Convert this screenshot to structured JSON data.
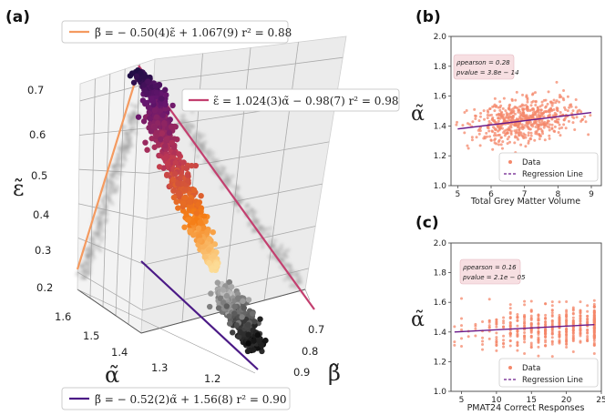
{
  "figure": {
    "panel_a_label": "(a)",
    "panel_b_label": "(b)",
    "panel_c_label": "(c)"
  },
  "chart_data": [
    {
      "type": "scatter",
      "panel": "(a)",
      "projection": "3d",
      "axes": {
        "x": {
          "symbol": "α̃",
          "ticks": [
            "1.2",
            "1.3",
            "1.4",
            "1.5",
            "1.6"
          ],
          "range": [
            1.15,
            1.65
          ]
        },
        "y": {
          "symbol": "β̃",
          "ticks": [
            "0.7",
            "0.8",
            "0.9"
          ],
          "range": [
            0.65,
            0.95
          ]
        },
        "z": {
          "symbol": "ε̃",
          "ticks": [
            "0.2",
            "0.3",
            "0.4",
            "0.5",
            "0.6",
            "0.7"
          ],
          "range": [
            0.15,
            0.75
          ]
        }
      },
      "colormap": {
        "variable": "ε̃",
        "low_color": "#fcfdbf",
        "mid_color": "#d8456c",
        "high_color": "#1b0c41"
      },
      "fit_lines": [
        {
          "name": "fit-beta-epsilon",
          "label": "β̃ = − 0.50(4)ε̃ + 1.067(9)    r² = 0.88",
          "color": "#f49a60"
        },
        {
          "name": "fit-epsilon-alpha",
          "label": "ε̃ = 1.024(3)α̃ − 0.98(7)    r² = 0.98",
          "color": "#c33f6f"
        },
        {
          "name": "fit-beta-alpha",
          "label": "β̃ = − 0.52(2)α̃ + 1.56(8)    r² = 0.90",
          "color": "#4b1a86"
        }
      ],
      "data_trend": {
        "alpha_range": [
          1.18,
          1.62
        ],
        "epsilon_rel": "ε̃ = 1.024α̃ − 0.98",
        "beta_rel": "β̃ = −0.52α̃ + 1.56"
      }
    },
    {
      "type": "scatter",
      "panel": "(b)",
      "title": "",
      "xlabel": "Total Grey Matter Volume",
      "ylabel": "α̃",
      "xlim": [
        4.8,
        9.3
      ],
      "ylim": [
        1.0,
        2.0
      ],
      "xticks": [
        "5",
        "6",
        "7",
        "8",
        "9"
      ],
      "yticks": [
        "1.0",
        "1.2",
        "1.4",
        "1.6",
        "1.8",
        "2.0"
      ],
      "stats": {
        "rho_label": "ρpearson = 0.28",
        "p_label": "pvalue = 3.8e − 14"
      },
      "regression": {
        "x": [
          5.0,
          9.0
        ],
        "y": [
          1.38,
          1.49
        ]
      },
      "legend": {
        "data_label": "Data",
        "line_label": "Regression Line",
        "placement": "lower-right"
      },
      "points_summary": {
        "x_mean": 7.0,
        "x_sd": 0.8,
        "y_mean": 1.44,
        "y_sd": 0.07,
        "n": 600
      }
    },
    {
      "type": "scatter",
      "panel": "(c)",
      "title": "",
      "xlabel": "PMAT24 Correct Responses",
      "ylabel": "α̃",
      "xlim": [
        3.5,
        25.0
      ],
      "ylim": [
        1.0,
        2.0
      ],
      "xticks": [
        "5",
        "10",
        "15",
        "20",
        "25"
      ],
      "yticks": [
        "1.0",
        "1.2",
        "1.4",
        "1.6",
        "1.8",
        "2.0"
      ],
      "stats": {
        "rho_label": "ρpearson = 0.16",
        "p_label": "pvalue = 2.1e − 05"
      },
      "regression": {
        "x": [
          4.0,
          24.0
        ],
        "y": [
          1.4,
          1.45
        ]
      },
      "legend": {
        "data_label": "Data",
        "line_label": "Regression Line",
        "placement": "lower-right"
      },
      "points_summary": {
        "x_values": "integers 4–24",
        "y_mean": 1.43,
        "y_sd": 0.07,
        "n": 500
      }
    }
  ],
  "colors": {
    "point_salmon": "#f4876a",
    "regression_purple": "#6a1a8a",
    "stat_box_bg": "#f7dfe2",
    "grid_gray": "#b0b0b0",
    "pane_gray": "#f2f2f2"
  }
}
